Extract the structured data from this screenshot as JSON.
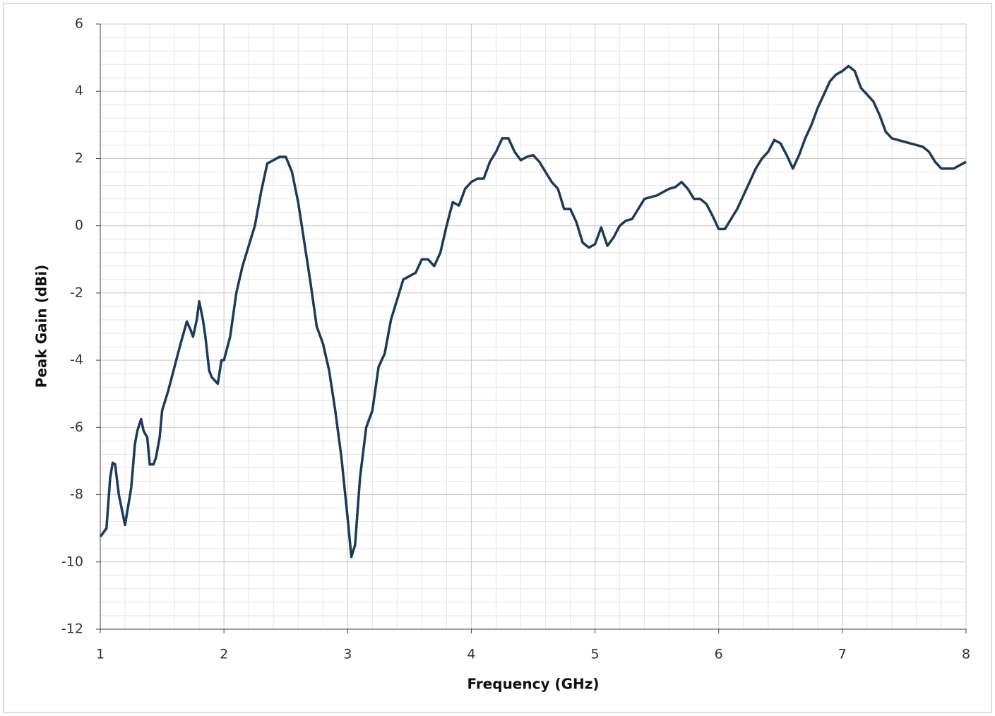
{
  "chart_data": {
    "type": "line",
    "xlabel": "Frequency (GHz)",
    "ylabel": "Peak Gain (dBi)",
    "xlim": [
      1,
      8
    ],
    "xticks": [
      1,
      2,
      3,
      4,
      5,
      6,
      7,
      8
    ],
    "ylim": [
      -12,
      6
    ],
    "yticks": [
      -12,
      -10,
      -8,
      -6,
      -4,
      -2,
      0,
      2,
      4,
      6
    ],
    "grid": true,
    "minor_grid": true,
    "x": [
      1.0,
      1.05,
      1.08,
      1.1,
      1.12,
      1.15,
      1.2,
      1.25,
      1.28,
      1.3,
      1.33,
      1.35,
      1.38,
      1.4,
      1.43,
      1.45,
      1.48,
      1.5,
      1.55,
      1.6,
      1.65,
      1.7,
      1.73,
      1.75,
      1.78,
      1.8,
      1.83,
      1.85,
      1.88,
      1.9,
      1.95,
      1.98,
      2.0,
      2.05,
      2.1,
      2.15,
      2.2,
      2.25,
      2.3,
      2.35,
      2.4,
      2.45,
      2.5,
      2.55,
      2.6,
      2.65,
      2.7,
      2.75,
      2.8,
      2.85,
      2.9,
      2.95,
      3.0,
      3.03,
      3.06,
      3.1,
      3.15,
      3.2,
      3.25,
      3.3,
      3.35,
      3.4,
      3.45,
      3.5,
      3.55,
      3.6,
      3.65,
      3.7,
      3.75,
      3.8,
      3.85,
      3.9,
      3.95,
      4.0,
      4.05,
      4.1,
      4.15,
      4.2,
      4.25,
      4.3,
      4.35,
      4.4,
      4.45,
      4.5,
      4.55,
      4.6,
      4.65,
      4.7,
      4.75,
      4.8,
      4.85,
      4.9,
      4.95,
      5.0,
      5.05,
      5.1,
      5.15,
      5.2,
      5.25,
      5.3,
      5.35,
      5.4,
      5.45,
      5.5,
      5.55,
      5.6,
      5.65,
      5.7,
      5.75,
      5.8,
      5.85,
      5.9,
      5.95,
      6.0,
      6.05,
      6.1,
      6.15,
      6.2,
      6.25,
      6.3,
      6.35,
      6.4,
      6.45,
      6.5,
      6.55,
      6.6,
      6.65,
      6.7,
      6.75,
      6.8,
      6.85,
      6.9,
      6.95,
      7.0,
      7.05,
      7.1,
      7.15,
      7.2,
      7.25,
      7.3,
      7.35,
      7.4,
      7.45,
      7.5,
      7.55,
      7.6,
      7.65,
      7.7,
      7.75,
      7.8,
      7.85,
      7.9,
      7.95,
      8.0
    ],
    "series": [
      {
        "name": "Peak Gain",
        "color": "#1b3a5c",
        "values": [
          -9.25,
          -9.0,
          -7.5,
          -7.05,
          -7.1,
          -8.0,
          -8.9,
          -7.8,
          -6.5,
          -6.1,
          -5.75,
          -6.1,
          -6.3,
          -7.1,
          -7.1,
          -6.9,
          -6.3,
          -5.5,
          -4.9,
          -4.2,
          -3.5,
          -2.85,
          -3.1,
          -3.3,
          -2.8,
          -2.25,
          -2.8,
          -3.3,
          -4.3,
          -4.5,
          -4.7,
          -4.0,
          -4.0,
          -3.3,
          -2.0,
          -1.2,
          -0.6,
          0.0,
          1.0,
          1.85,
          1.95,
          2.05,
          2.05,
          1.6,
          0.7,
          -0.5,
          -1.7,
          -3.0,
          -3.5,
          -4.3,
          -5.5,
          -6.9,
          -8.7,
          -9.85,
          -9.5,
          -7.5,
          -6.0,
          -5.5,
          -4.2,
          -3.8,
          -2.8,
          -2.2,
          -1.6,
          -1.5,
          -1.4,
          -1.0,
          -1.0,
          -1.2,
          -0.8,
          0.0,
          0.7,
          0.6,
          1.1,
          1.3,
          1.4,
          1.4,
          1.9,
          2.2,
          2.6,
          2.6,
          2.2,
          1.95,
          2.05,
          2.1,
          1.9,
          1.6,
          1.3,
          1.1,
          0.5,
          0.5,
          0.1,
          -0.5,
          -0.65,
          -0.55,
          -0.05,
          -0.6,
          -0.35,
          0.0,
          0.15,
          0.2,
          0.5,
          0.8,
          0.85,
          0.9,
          1.0,
          1.1,
          1.15,
          1.3,
          1.1,
          0.8,
          0.8,
          0.65,
          0.3,
          -0.1,
          -0.1,
          0.2,
          0.5,
          0.9,
          1.3,
          1.7,
          2.0,
          2.2,
          2.55,
          2.45,
          2.1,
          1.7,
          2.1,
          2.6,
          3.0,
          3.5,
          3.9,
          4.3,
          4.5,
          4.6,
          4.75,
          4.6,
          4.1,
          3.9,
          3.7,
          3.3,
          2.8,
          2.6,
          2.55,
          2.5,
          2.45,
          2.4,
          2.35,
          2.2,
          1.9,
          1.7,
          1.7,
          1.7,
          1.8,
          1.9
        ]
      }
    ]
  }
}
